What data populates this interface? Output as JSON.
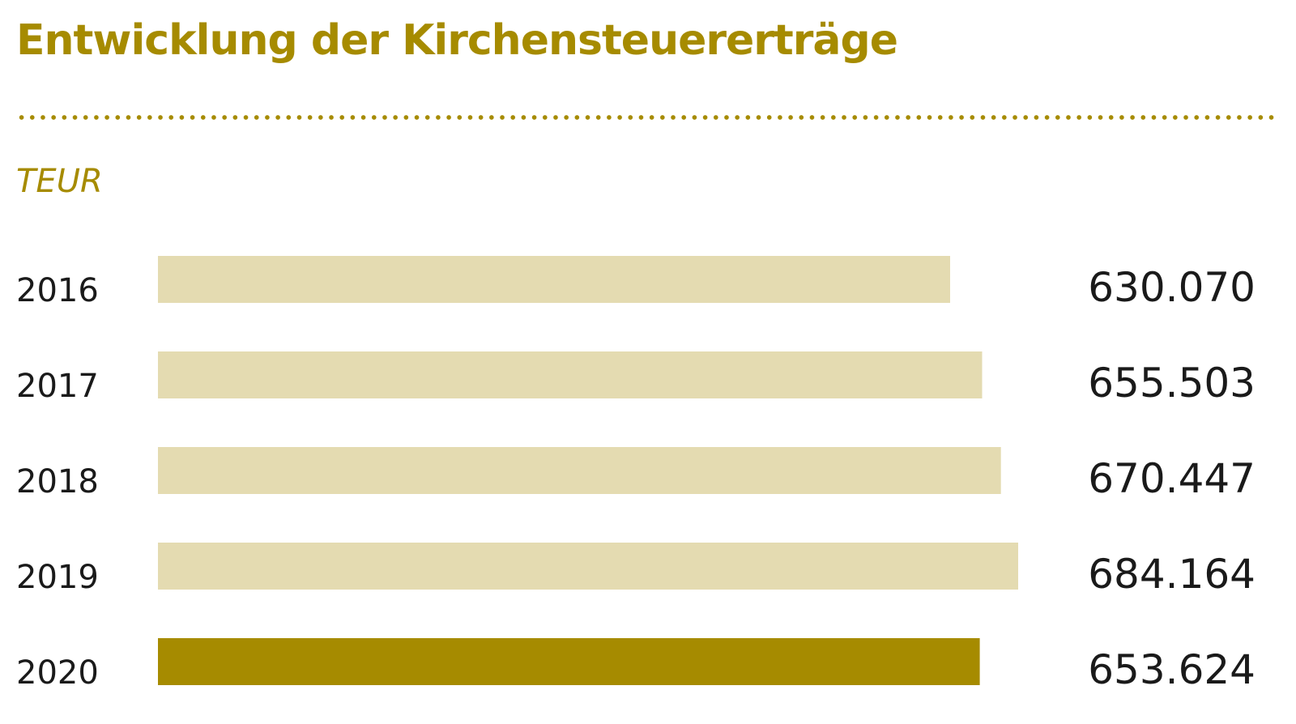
{
  "colors": {
    "accent": "#a68b00",
    "bar": "#e4dbb1",
    "bar_highlight": "#a68b00",
    "text": "#1a1a1a"
  },
  "chart_data": {
    "type": "bar",
    "orientation": "horizontal",
    "title": "Entwicklung der Kirchensteuererträge",
    "unit_label": "TEUR",
    "categories": [
      "2016",
      "2017",
      "2018",
      "2019",
      "2020"
    ],
    "values": [
      630070,
      655503,
      670447,
      684164,
      653624
    ],
    "value_labels": [
      "630.070",
      "655.503",
      "670.447",
      "684.164",
      "653.624"
    ],
    "highlight_index": 4,
    "xlim": [
      0,
      684164
    ],
    "grid": false,
    "legend": "none"
  }
}
